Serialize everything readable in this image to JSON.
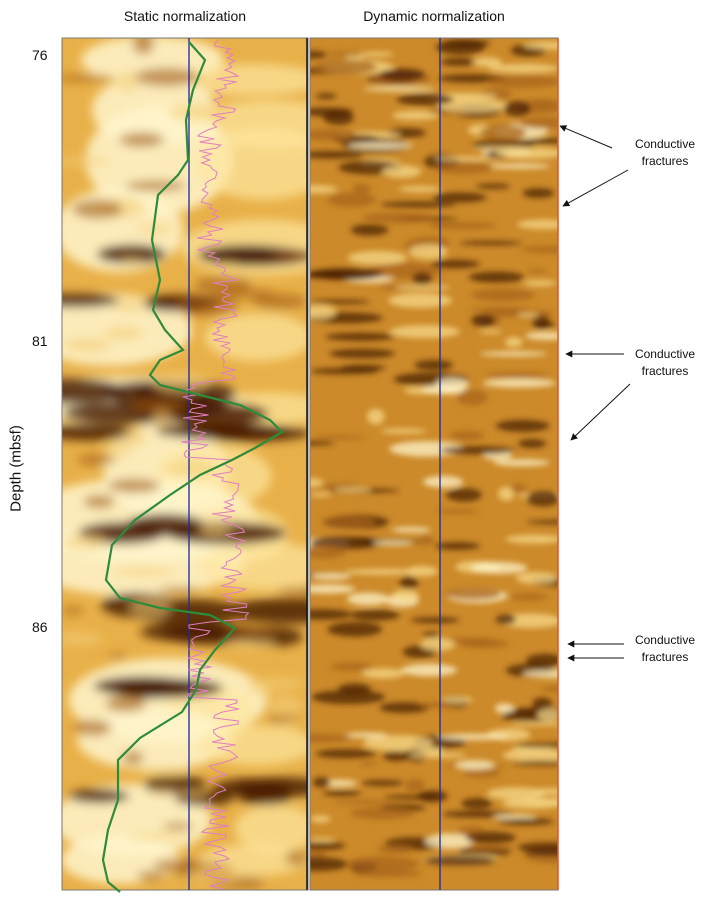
{
  "titles": {
    "static": "Static normalization",
    "dynamic": "Dynamic normalization"
  },
  "ylabel": "Depth (mbsf)",
  "depth_ticks": [
    "76",
    "81",
    "86"
  ],
  "annotations": [
    {
      "line1": "Conductive",
      "line2": "fractures"
    },
    {
      "line1": "Conductive",
      "line2": "fractures"
    },
    {
      "line1": "Conductive",
      "line2": "fractures"
    }
  ],
  "colors": {
    "image_dark": "#4a1f05",
    "image_mid": "#c98322",
    "image_light": "#fff6cc",
    "green_curve": "#2e8b3a",
    "pink_curve": "#e07fc0",
    "center_line": "#1a2a9a",
    "right_border": "#e8502a"
  }
}
